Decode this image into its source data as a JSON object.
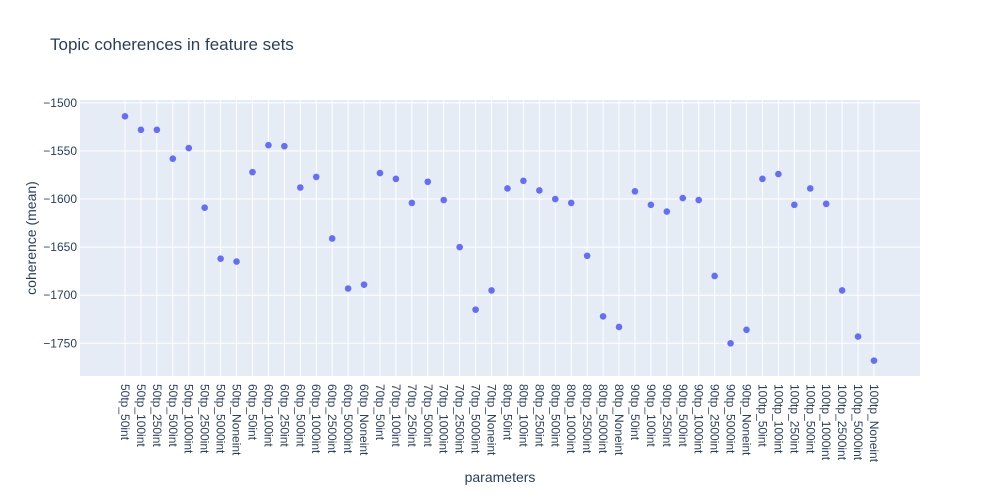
{
  "chart_data": {
    "type": "scatter",
    "title": "Topic coherences in feature sets",
    "xlabel": "parameters",
    "ylabel": "coherence (mean)",
    "ylim": [
      -1784,
      -1497
    ],
    "yticks": [
      -1500,
      -1550,
      -1600,
      -1650,
      -1700,
      -1750
    ],
    "grid": true,
    "legend": "none",
    "colors": {
      "marker": "#636efa",
      "plot_bg": "#e5ecf6",
      "grid": "#ffffff",
      "text": "#2a3f5f"
    },
    "categories": [
      "50tp_50int",
      "50tp_100int",
      "50tp_250int",
      "50tp_500int",
      "50tp_1000int",
      "50tp_2500int",
      "50tp_5000int",
      "50tp_Noneint",
      "60tp_50int",
      "60tp_100int",
      "60tp_250int",
      "60tp_500int",
      "60tp_1000int",
      "60tp_2500int",
      "60tp_5000int",
      "60tp_Noneint",
      "70tp_50int",
      "70tp_100int",
      "70tp_250int",
      "70tp_500int",
      "70tp_1000int",
      "70tp_2500int",
      "70tp_5000int",
      "70tp_Noneint",
      "80tp_50int",
      "80tp_100int",
      "80tp_250int",
      "80tp_500int",
      "80tp_1000int",
      "80tp_2500int",
      "80tp_5000int",
      "80tp_Noneint",
      "90tp_50int",
      "90tp_100int",
      "90tp_250int",
      "90tp_500int",
      "90tp_1000int",
      "90tp_2500int",
      "90tp_5000int",
      "90tp_Noneint",
      "100tp_50int",
      "100tp_100int",
      "100tp_250int",
      "100tp_500int",
      "100tp_1000int",
      "100tp_2500int",
      "100tp_5000int",
      "100tp_Noneint"
    ],
    "values": [
      -1514,
      -1528,
      -1528,
      -1558,
      -1547,
      -1609,
      -1662,
      -1665,
      -1572,
      -1544,
      -1545,
      -1588,
      -1577,
      -1641,
      -1693,
      -1689,
      -1573,
      -1579,
      -1604,
      -1582,
      -1601,
      -1650,
      -1715,
      -1695,
      -1589,
      -1581,
      -1591,
      -1600,
      -1604,
      -1659,
      -1722,
      -1733,
      -1592,
      -1606,
      -1613,
      -1599,
      -1601,
      -1680,
      -1750,
      -1736,
      -1579,
      -1574,
      -1606,
      -1589,
      -1605,
      -1695,
      -1743,
      -1768
    ]
  }
}
